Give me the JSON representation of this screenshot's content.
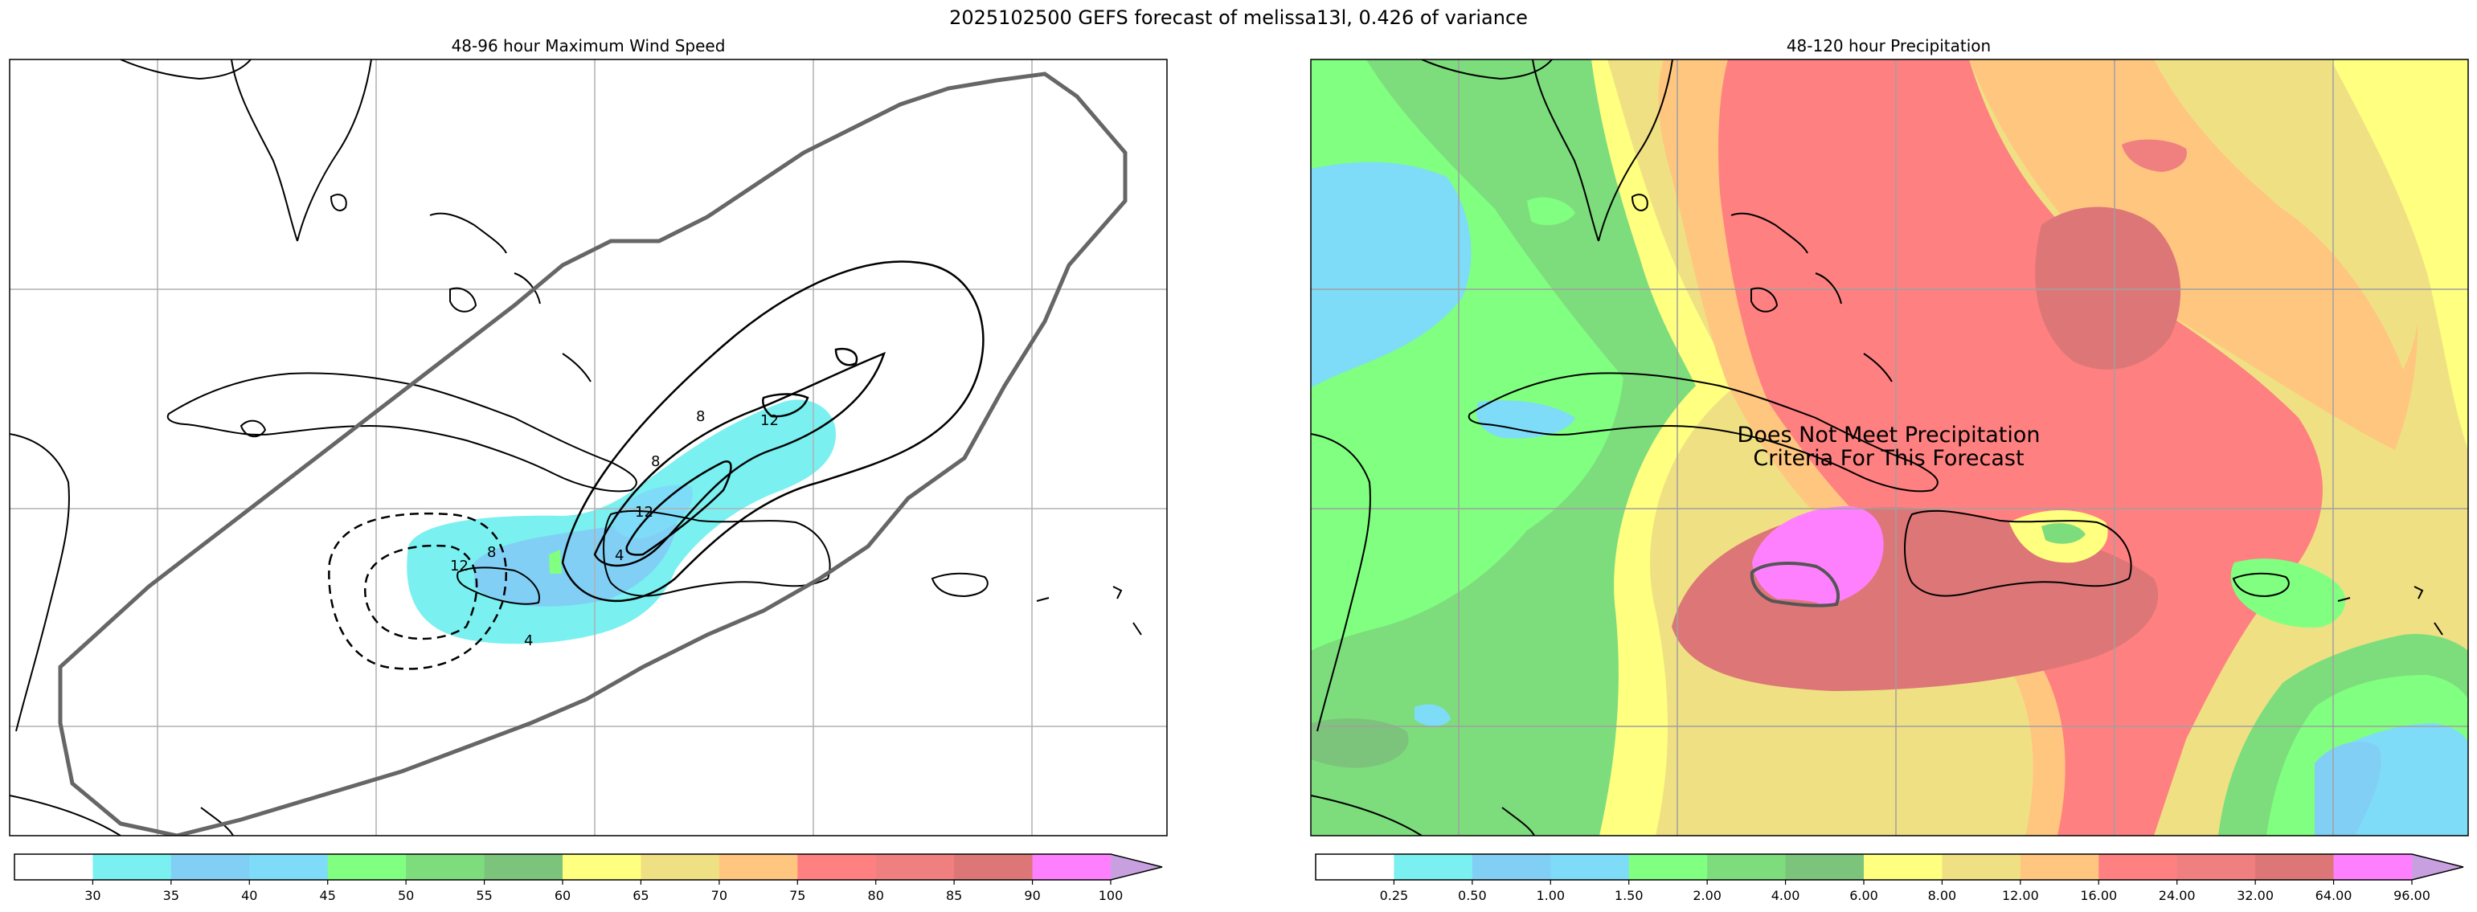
{
  "figure": {
    "title": "2025102500 GEFS forecast of melissa13l, 0.426 of variance"
  },
  "chart_data": [
    {
      "type": "contour",
      "title": "48-96 hour Maximum Wind Speed",
      "contour_labels": [
        "8",
        "12",
        "8",
        "12",
        "4",
        "8",
        "12",
        "4"
      ],
      "colorbar": {
        "ticks": [
          "30",
          "35",
          "40",
          "45",
          "50",
          "55",
          "60",
          "65",
          "70",
          "75",
          "80",
          "85",
          "90",
          "100"
        ],
        "colors": [
          "#ffffff",
          "#7af0f0",
          "#82cff5",
          "#7edcf8",
          "#80ff80",
          "#7ddd7d",
          "#7cc47c",
          "#ffff80",
          "#f0e084",
          "#ffc680",
          "#ff8080",
          "#f08080",
          "#dd7777",
          "#ff80ff",
          "#c8a0e0"
        ],
        "extend": "max"
      }
    },
    {
      "type": "contour",
      "title": "48-120 hour Precipitation",
      "annotation": [
        "Does Not Meet Precipitation",
        "Criteria For This Forecast"
      ],
      "colorbar": {
        "ticks": [
          "0.25",
          "0.50",
          "1.00",
          "1.50",
          "2.00",
          "4.00",
          "6.00",
          "8.00",
          "12.00",
          "16.00",
          "24.00",
          "32.00",
          "64.00",
          "96.00"
        ],
        "colors": [
          "#ffffff",
          "#7af0f0",
          "#82cff5",
          "#7edcf8",
          "#80ff80",
          "#7ddd7d",
          "#7cc47c",
          "#ffff80",
          "#f0e084",
          "#ffc680",
          "#ff8080",
          "#f08080",
          "#dd7777",
          "#ff80ff",
          "#c8a0e0"
        ],
        "extend": "max"
      }
    }
  ]
}
